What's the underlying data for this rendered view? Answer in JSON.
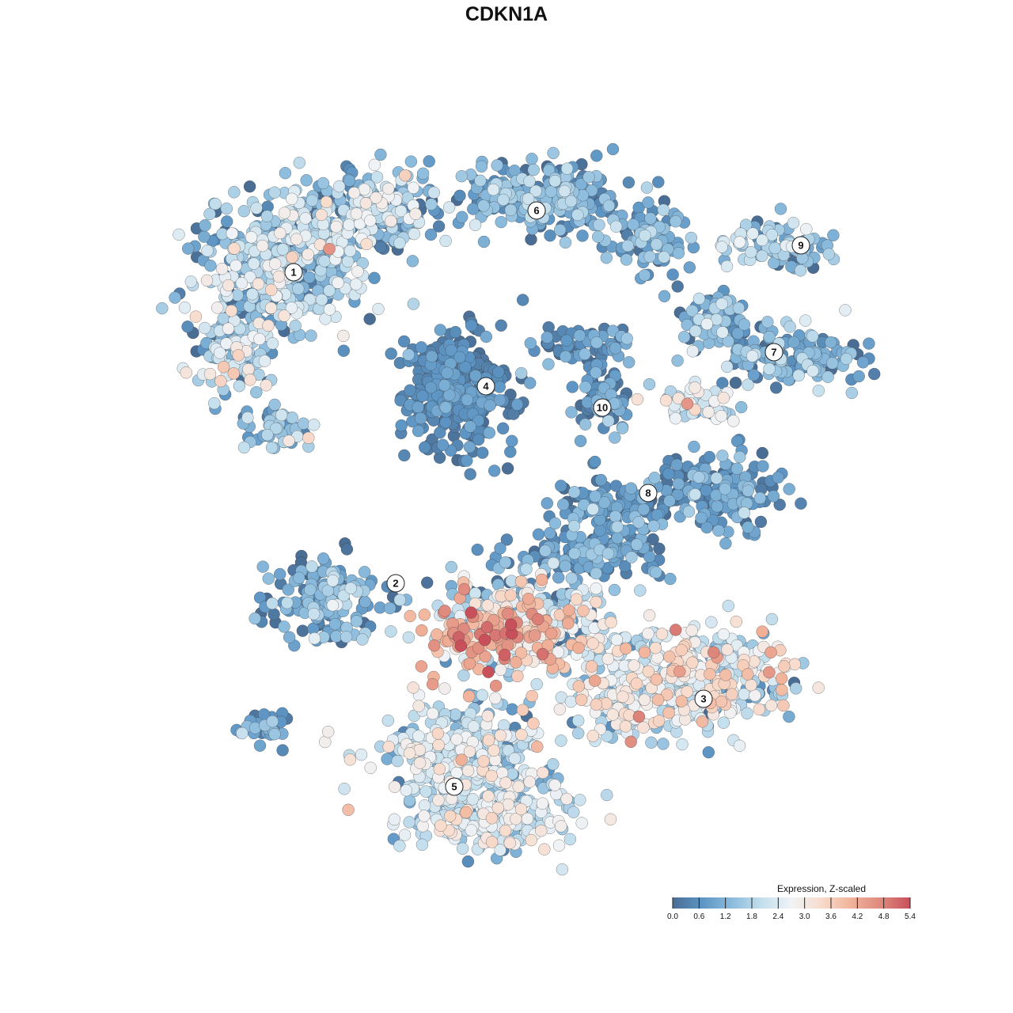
{
  "chart_data": {
    "type": "scatter",
    "title": "CDKN1A",
    "xlabel": "",
    "ylabel": "",
    "grid": false,
    "legend": {
      "title": "Expression, Z-scaled",
      "placement": "bottom-right",
      "min": 0.0,
      "max": 5.4,
      "ticks": [
        "0.0",
        "0.6",
        "1.2",
        "1.8",
        "2.4",
        "3.0",
        "3.6",
        "4.2",
        "4.8",
        "5.4"
      ],
      "colors": [
        "#4a6d94",
        "#5d95c4",
        "#8cbcdd",
        "#c4dfed",
        "#f0f3f6",
        "#f8dccd",
        "#f1b39a",
        "#df8a7e",
        "#c8505b"
      ]
    },
    "clusters": [
      {
        "label": "1",
        "mean_expression": 1.5
      },
      {
        "label": "2",
        "mean_expression": 0.9
      },
      {
        "label": "3",
        "mean_expression": 2.3
      },
      {
        "label": "4",
        "mean_expression": 0.4
      },
      {
        "label": "5",
        "mean_expression": 2.0
      },
      {
        "label": "6",
        "mean_expression": 1.0
      },
      {
        "label": "7",
        "mean_expression": 1.0
      },
      {
        "label": "8",
        "mean_expression": 0.7
      },
      {
        "label": "9",
        "mean_expression": 1.4
      },
      {
        "label": "10",
        "mean_expression": 0.6
      }
    ]
  }
}
